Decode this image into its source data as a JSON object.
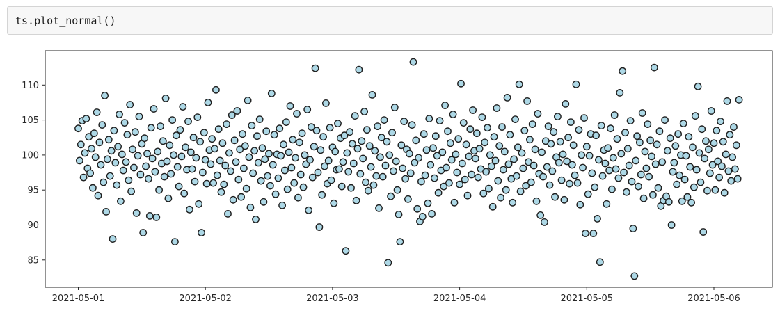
{
  "code_cell": {
    "code": "ts.plot_normal()"
  },
  "chart_data": {
    "type": "scatter",
    "title": "",
    "xlabel": "",
    "ylabel": "",
    "legend": "none",
    "grid": false,
    "x_start": "2021-05-01",
    "x_step_days": 0.0104167,
    "n_points": 500,
    "xlim_days": [
      -0.26,
      5.46
    ],
    "ylim": [
      81.1,
      114.9
    ],
    "x_ticks": [
      {
        "day": 0,
        "label": "2021-05-01"
      },
      {
        "day": 1,
        "label": "2021-05-02"
      },
      {
        "day": 2,
        "label": "2021-05-03"
      },
      {
        "day": 3,
        "label": "2021-05-04"
      },
      {
        "day": 4,
        "label": "2021-05-05"
      },
      {
        "day": 5,
        "label": "2021-05-06"
      }
    ],
    "y_ticks": [
      {
        "value": 85,
        "label": "85"
      },
      {
        "value": 90,
        "label": "90"
      },
      {
        "value": 95,
        "label": "95"
      },
      {
        "value": 100,
        "label": "100"
      },
      {
        "value": 105,
        "label": "105"
      },
      {
        "value": 110,
        "label": "110"
      }
    ],
    "axis_color": "#262626",
    "marker": {
      "shape": "circle",
      "fill": "#ADD8E6",
      "edge": "#1f1f1f"
    },
    "values": [
      103.8,
      99.2,
      101.5,
      104.9,
      96.8,
      100.3,
      105.2,
      98.1,
      102.6,
      97.4,
      100.9,
      95.3,
      103.1,
      99.7,
      106.1,
      94.2,
      101.8,
      98.6,
      104.3,
      96.1,
      108.5,
      91.9,
      99.4,
      102.2,
      97.0,
      100.6,
      88.0,
      103.5,
      98.9,
      95.7,
      101.2,
      105.8,
      93.4,
      100.1,
      97.8,
      104.6,
      99.0,
      102.9,
      96.4,
      107.2,
      94.8,
      100.8,
      98.2,
      103.3,
      91.7,
      99.9,
      105.5,
      97.2,
      101.6,
      88.9,
      102.4,
      98.4,
      100.2,
      96.6,
      91.3,
      103.9,
      99.5,
      106.6,
      97.6,
      91.1,
      100.5,
      95.0,
      104.1,
      98.8,
      102.0,
      96.9,
      108.1,
      99.1,
      93.8,
      101.4,
      97.3,
      105.0,
      100.0,
      87.6,
      102.8,
      98.3,
      95.5,
      103.6,
      99.8,
      106.9,
      94.5,
      101.1,
      97.9,
      104.8,
      92.2,
      100.4,
      98.0,
      102.5,
      96.2,
      99.6,
      105.4,
      93.0,
      101.9,
      88.9,
      97.5,
      103.2,
      99.3,
      95.9,
      107.5,
      100.7,
      98.7,
      102.3,
      96.0,
      100.9,
      109.3,
      97.1,
      103.7,
      99.2,
      94.7,
      101.7,
      95.8,
      98.5,
      104.4,
      91.6,
      100.3,
      97.7,
      105.7,
      93.6,
      102.1,
      99.0,
      106.3,
      96.5,
      100.8,
      94.0,
      103.0,
      98.1,
      101.3,
      95.2,
      107.8,
      99.7,
      92.5,
      104.2,
      97.4,
      100.6,
      90.8,
      102.7,
      98.9,
      105.1,
      96.3,
      101.0,
      93.3,
      99.4,
      103.4,
      97.0,
      100.2,
      95.6,
      108.8,
      98.6,
      102.9,
      94.4,
      100.1,
      96.7,
      103.8,
      99.9,
      92.8,
      101.5,
      97.8,
      104.7,
      95.1,
      100.4,
      107.0,
      98.2,
      102.2,
      96.0,
      99.6,
      105.9,
      93.9,
      101.8,
      97.2,
      103.1,
      95.4,
      100.0,
      98.7,
      106.5,
      92.1,
      99.3,
      104.0,
      96.8,
      101.2,
      112.4,
      103.5,
      97.5,
      89.7,
      100.7,
      94.3,
      102.6,
      98.4,
      107.4,
      95.9,
      99.2,
      103.9,
      96.4,
      101.1,
      93.1,
      100.5,
      97.9,
      104.5,
      98.0,
      102.4,
      95.5,
      99.0,
      102.8,
      86.3,
      100.3,
      97.6,
      103.3,
      95.3,
      101.6,
      98.8,
      105.6,
      93.5,
      100.9,
      112.2,
      97.3,
      102.0,
      99.5,
      106.2,
      96.1,
      103.6,
      94.9,
      101.3,
      98.3,
      108.6,
      95.7,
      100.6,
      97.0,
      104.1,
      92.4,
      99.7,
      102.5,
      96.9,
      105.0,
      98.5,
      101.9,
      84.6,
      100.0,
      94.1,
      103.2,
      97.7,
      106.8,
      99.1,
      95.0,
      91.5,
      87.6,
      101.4,
      98.1,
      104.8,
      96.6,
      100.8,
      93.7,
      100.2,
      97.4,
      104.3,
      113.3,
      98.9,
      102.1,
      92.3,
      99.6,
      90.5,
      96.2,
      91.2,
      103.0,
      97.1,
      100.7,
      93.1,
      105.2,
      98.6,
      91.6,
      101.0,
      96.7,
      102.7,
      99.9,
      94.6,
      104.9,
      97.8,
      100.4,
      95.5,
      107.1,
      98.2,
      103.4,
      96.0,
      101.7,
      99.3,
      105.8,
      93.2,
      100.1,
      97.5,
      102.3,
      95.8,
      110.2,
      98.8,
      104.6,
      96.5,
      101.5,
      94.2,
      99.8,
      103.7,
      97.2,
      106.4,
      100.6,
      99.5,
      103.1,
      96.8,
      100.9,
      98.0,
      105.4,
      94.5,
      101.8,
      97.6,
      103.9,
      95.2,
      100.0,
      98.4,
      92.6,
      102.6,
      99.2,
      106.7,
      96.3,
      101.3,
      93.9,
      104.0,
      97.9,
      100.5,
      95.0,
      108.2,
      98.7,
      102.9,
      96.6,
      93.2,
      99.4,
      105.1,
      97.0,
      101.1,
      110.1,
      94.8,
      100.3,
      98.1,
      103.5,
      95.6,
      107.7,
      99.0,
      102.2,
      96.1,
      104.4,
      98.5,
      100.8,
      93.4,
      105.9,
      97.3,
      91.4,
      100.4,
      96.9,
      90.4,
      102.0,
      98.3,
      104.1,
      95.7,
      101.6,
      97.7,
      103.3,
      94.0,
      99.7,
      105.5,
      98.9,
      101.9,
      96.4,
      100.1,
      93.6,
      107.3,
      99.1,
      102.5,
      95.9,
      104.7,
      98.6,
      101.4,
      97.1,
      110.1,
      96.0,
      103.6,
      92.9,
      100.0,
      98.2,
      105.3,
      88.8,
      101.2,
      94.4,
      99.9,
      103.0,
      97.4,
      88.8,
      95.4,
      102.8,
      90.9,
      99.3,
      84.7,
      104.2,
      97.0,
      100.7,
      98.8,
      93.0,
      101.0,
      97.8,
      103.8,
      95.1,
      99.6,
      105.7,
      98.0,
      102.3,
      96.7,
      108.9,
      100.2,
      112.0,
      97.5,
      103.2,
      94.7,
      100.9,
      98.5,
      104.9,
      96.2,
      89.5,
      82.7,
      99.2,
      102.7,
      95.5,
      101.8,
      97.2,
      106.0,
      93.8,
      100.5,
      98.1,
      104.4,
      96.9,
      102.1,
      99.8,
      94.3,
      112.5,
      98.7,
      101.5,
      95.3,
      103.4,
      92.7,
      99.0,
      93.5,
      105.0,
      94.1,
      100.6,
      93.3,
      102.4,
      90.0,
      97.6,
      98.9,
      101.3,
      95.8,
      103.0,
      97.1,
      100.0,
      93.4,
      104.5,
      96.5,
      99.9,
      94.0,
      102.6,
      98.3,
      93.2,
      101.1,
      95.4,
      105.6,
      97.9,
      109.8,
      100.3,
      96.1,
      103.7,
      89.0,
      99.5,
      102.0,
      94.9,
      100.8,
      97.4,
      106.3,
      98.6,
      101.7,
      95.0,
      103.5,
      99.1,
      96.8,
      104.8,
      98.4,
      101.9,
      94.6,
      100.1,
      107.7,
      97.7,
      102.9,
      96.3,
      99.7,
      104.0,
      98.0,
      101.4,
      96.6,
      107.9
    ]
  }
}
